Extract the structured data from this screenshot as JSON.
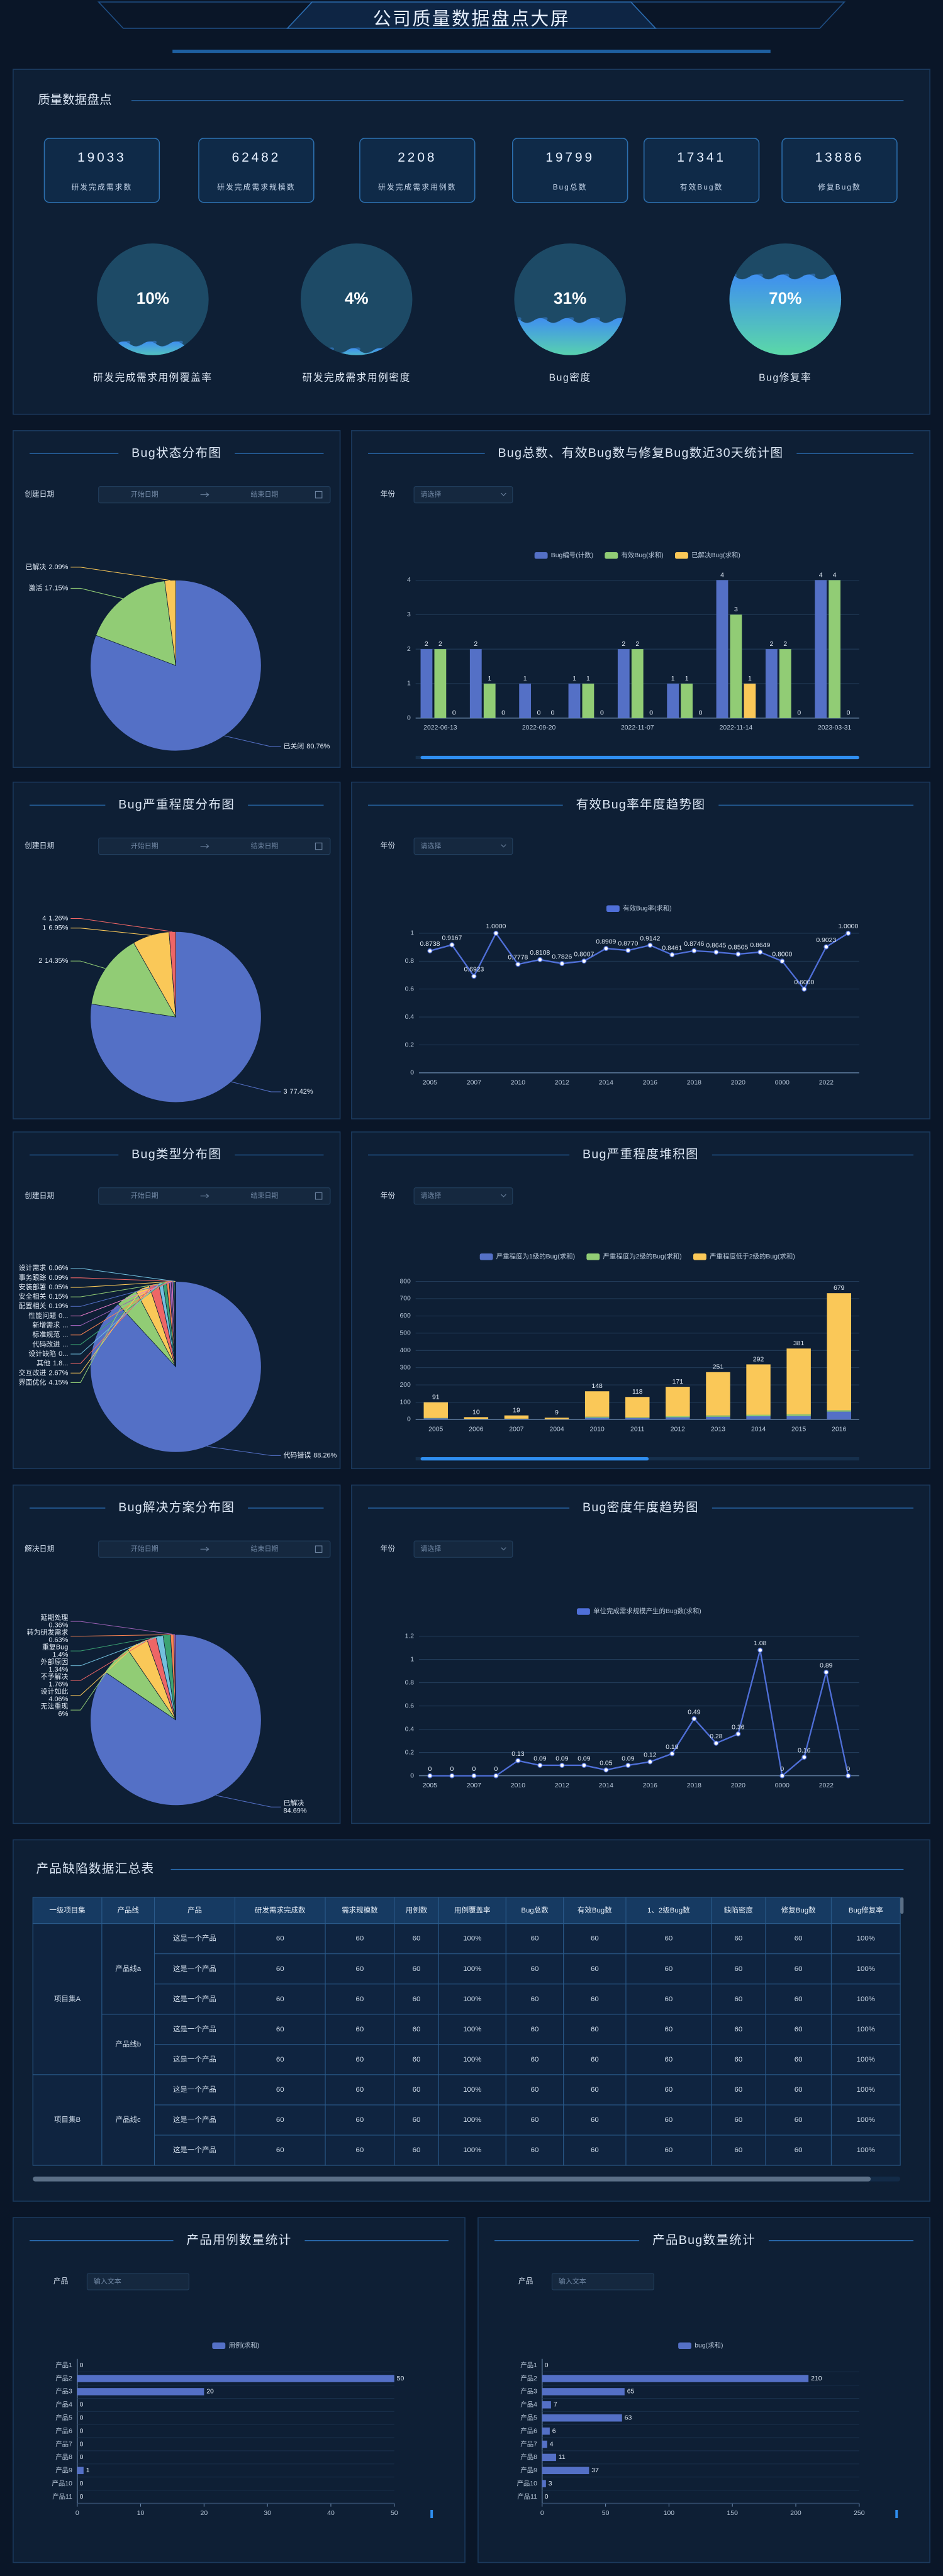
{
  "header": {
    "title": "公司质量数据盘点大屏"
  },
  "overview": {
    "title": "质量数据盘点",
    "kpis": [
      {
        "value": 19033,
        "label": "研发完成需求数"
      },
      {
        "value": 62482,
        "label": "研发完成需求规模数"
      },
      {
        "value": 2208,
        "label": "研发完成需求用例数"
      },
      {
        "value": 19799,
        "label": "Bug总数"
      },
      {
        "value": 17341,
        "label": "有效Bug数"
      },
      {
        "value": 13886,
        "label": "修复Bug数"
      }
    ],
    "gauges": [
      {
        "value": 10,
        "value_label": "10%",
        "label": "研发完成需求用例覆盖率"
      },
      {
        "value": 4,
        "value_label": "4%",
        "label": "研发完成需求用例密度"
      },
      {
        "value": 31,
        "value_label": "31%",
        "label": "Bug密度"
      },
      {
        "value": 70,
        "value_label": "70%",
        "label": "Bug修复率"
      }
    ]
  },
  "chart_data": [
    {
      "type": "pie",
      "title": "Bug状态分布图",
      "filter": {
        "label": "创建日期",
        "start": "开始日期",
        "end": "结束日期"
      },
      "categories": [
        "已关闭",
        "激活",
        "已解决"
      ],
      "values": [
        80.76,
        17.15,
        2.09
      ],
      "value_labels": [
        "80.76%",
        "17.15%",
        "2.09%"
      ],
      "colors": [
        "#5470c6",
        "#91cc75",
        "#fac858"
      ]
    },
    {
      "type": "bar",
      "title": "Bug总数、有效Bug数与修复Bug数近30天统计图",
      "filter": {
        "label": "年份",
        "placeholder": "请选择"
      },
      "categories": [
        "2022-06-13",
        null,
        "2022-09-20",
        null,
        "2022-11-07",
        null,
        "2022-11-14",
        null,
        "2023-03-31"
      ],
      "series": [
        {
          "name": "Bug编号(计数)",
          "color": "#5470c6",
          "values": [
            2,
            2,
            1,
            1,
            2,
            1,
            4,
            2,
            4
          ]
        },
        {
          "name": "有效Bug(求和)",
          "color": "#91cc75",
          "values": [
            2,
            1,
            0,
            1,
            2,
            1,
            3,
            2,
            4
          ]
        },
        {
          "name": "已解决Bug(求和)",
          "color": "#fac858",
          "values": [
            0,
            0,
            0,
            0,
            0,
            0,
            1,
            0,
            0
          ]
        }
      ],
      "ylim": [
        0,
        4
      ],
      "yticks": [
        0,
        1,
        2,
        3,
        4
      ],
      "grid": true
    },
    {
      "type": "pie",
      "title": "Bug严重程度分布图",
      "filter": {
        "label": "创建日期",
        "start": "开始日期",
        "end": "结束日期"
      },
      "categories": [
        "3",
        "2",
        "1",
        "4"
      ],
      "values": [
        77.42,
        14.35,
        6.95,
        1.26
      ],
      "value_labels": [
        "77.42%",
        "14.35%",
        "6.95%",
        "1.26%"
      ],
      "colors": [
        "#5470c6",
        "#91cc75",
        "#fac858",
        "#ee6666"
      ]
    },
    {
      "type": "line",
      "title": "有效Bug率年度趋势图",
      "filter": {
        "label": "年份",
        "placeholder": "请选择"
      },
      "categories": [
        "2005",
        null,
        "2007",
        null,
        "2010",
        null,
        "2012",
        null,
        "2014",
        null,
        "2016",
        null,
        "2018",
        null,
        "2020",
        null,
        "0000",
        null,
        "2022",
        null
      ],
      "series": [
        {
          "name": "有效Bug率(求和)",
          "color": "#4f6fd8",
          "values": [
            0.8738,
            0.9167,
            0.6923,
            1,
            0.7778,
            0.8108,
            0.7826,
            0.8007,
            0.8909,
            0.877,
            0.9142,
            0.8461,
            0.8746,
            0.8645,
            0.8505,
            0.8649,
            0.8,
            0.6,
            0.9023,
            1
          ],
          "value_labels": [
            "0.8738",
            "0.9167",
            "0.6923",
            "1.0000",
            "0.7778",
            "0.8108",
            "0.7826",
            "0.8007",
            "0.8909",
            "0.8770",
            "0.9142",
            "0.8461",
            "0.8746",
            "0.8645",
            "0.8505",
            "0.8649",
            "0.8000",
            "0.6000",
            "0.9023",
            "1.0000"
          ]
        }
      ],
      "ylim": [
        0,
        1
      ],
      "yticks": [
        0,
        0.2,
        0.4,
        0.6,
        0.8,
        1
      ],
      "grid": true
    },
    {
      "type": "pie",
      "title": "Bug类型分布图",
      "filter": {
        "label": "创建日期",
        "start": "开始日期",
        "end": "结束日期"
      },
      "categories": [
        "代码错误",
        "界面优化",
        "交互改进",
        "其他",
        "设计缺陷",
        "代码改进",
        "标准规范",
        "新增需求",
        "性能问题",
        "配置相关",
        "安全相关",
        "安装部署",
        "事务跟踪",
        "设计需求"
      ],
      "values": [
        88.26,
        4.15,
        2.67,
        1.8,
        0.8,
        0.7,
        0.5,
        0.4,
        0.3,
        0.19,
        0.15,
        0.05,
        0.09,
        0.06
      ],
      "value_labels": [
        "88.26%",
        "4.15%",
        "2.67%",
        "1.8...",
        "0...",
        "...",
        "...",
        "...",
        "0...",
        "0.19%",
        "0.15%",
        "0.05%",
        "0.09%",
        "0.06%"
      ],
      "colors": [
        "#5470c6",
        "#91cc75",
        "#fac858",
        "#ee6666",
        "#73c0de",
        "#3ba272",
        "#fc8452",
        "#9a60b4",
        "#ea7ccc",
        "#5470c6",
        "#91cc75",
        "#fac858",
        "#ee6666",
        "#73c0de"
      ]
    },
    {
      "type": "bar",
      "stacked": true,
      "title": "Bug严重程度堆积图",
      "filter": {
        "label": "年份",
        "placeholder": "请选择"
      },
      "categories": [
        "2005",
        "2006",
        "2007",
        "2004",
        "2010",
        "2011",
        "2012",
        "2013",
        "2014",
        "2015",
        "2016"
      ],
      "series": [
        {
          "name": "严重程度为1级的Bug(求和)",
          "color": "#5470c6",
          "values": [
            6,
            2,
            3,
            1,
            10,
            8,
            12,
            15,
            18,
            20,
            45
          ]
        },
        {
          "name": "严重程度为2级的Bug(求和)",
          "color": "#91cc75",
          "values": [
            2,
            1,
            1,
            0,
            5,
            4,
            6,
            8,
            9,
            10,
            8
          ]
        },
        {
          "name": "严重程度低于2级的Bug(求和)",
          "color": "#fac858",
          "values": [
            91,
            10,
            19,
            9,
            148,
            118,
            171,
            251,
            292,
            381,
            679
          ]
        }
      ],
      "ylim": [
        0,
        800
      ],
      "yticks": [
        0,
        100,
        200,
        300,
        400,
        500,
        600,
        700,
        800
      ],
      "grid": true
    },
    {
      "type": "pie",
      "label_break": true,
      "title": "Bug解决方案分布图",
      "filter": {
        "label": "解决日期",
        "start": "开始日期",
        "end": "结束日期"
      },
      "categories": [
        "已解决",
        "无法重现",
        "设计如此",
        "不予解决",
        "外部原因",
        "重复Bug",
        "转为研发需求",
        "延期处理"
      ],
      "values": [
        84.69,
        6,
        4.06,
        1.76,
        1.34,
        1.4,
        0.63,
        0.36
      ],
      "value_labels": [
        "84.69%",
        "6%",
        "4.06%",
        "1.76%",
        "1.34%",
        "1.4%",
        "0.63%",
        "0.36%"
      ],
      "colors": [
        "#5470c6",
        "#91cc75",
        "#fac858",
        "#ee6666",
        "#73c0de",
        "#3ba272",
        "#fc8452",
        "#9a60b4"
      ]
    },
    {
      "type": "line",
      "title": "Bug密度年度趋势图",
      "filter": {
        "label": "年份",
        "placeholder": "请选择"
      },
      "categories": [
        "2005",
        null,
        "2007",
        null,
        "2010",
        null,
        "2012",
        null,
        "2014",
        null,
        "2016",
        null,
        "2018",
        null,
        "2020",
        null,
        "0000",
        null,
        "2022",
        null
      ],
      "series": [
        {
          "name": "单位完成需求规模产生的Bug数(求和)",
          "color": "#4f6fd8",
          "values": [
            0,
            0,
            0,
            0,
            0.13,
            0.09,
            0.09,
            0.09,
            0.05,
            0.09,
            0.12,
            0.19,
            0.49,
            0.28,
            0.36,
            1.08,
            0,
            0.16,
            0.89,
            0
          ]
        }
      ],
      "ylim": [
        0,
        1.2
      ],
      "yticks": [
        0,
        0.2,
        0.4,
        0.6,
        0.8,
        1,
        1.2
      ],
      "grid": true
    },
    {
      "type": "bar",
      "horizontal": true,
      "title": "产品用例数量统计",
      "filter": {
        "label": "产品",
        "placeholder": "输入文本"
      },
      "categories": [
        "产品1",
        "产品2",
        "产品3",
        "产品4",
        "产品5",
        "产品6",
        "产品7",
        "产品8",
        "产品9",
        "产品10",
        "产品11"
      ],
      "series": [
        {
          "name": "用例(求和)",
          "color": "#5470c6",
          "values": [
            0,
            50,
            20,
            0,
            0,
            0,
            0,
            0,
            1,
            0,
            0
          ]
        }
      ],
      "xlim": [
        0,
        50
      ],
      "xticks": [
        0,
        10,
        20,
        30,
        40,
        50
      ]
    },
    {
      "type": "bar",
      "horizontal": true,
      "title": "产品Bug数量统计",
      "filter": {
        "label": "产品",
        "placeholder": "输入文本"
      },
      "categories": [
        "产品1",
        "产品2",
        "产品3",
        "产品4",
        "产品5",
        "产品6",
        "产品7",
        "产品8",
        "产品9",
        "产品10",
        "产品11"
      ],
      "series": [
        {
          "name": "bug(求和)",
          "color": "#5470c6",
          "values": [
            0,
            210,
            65,
            7,
            63,
            6,
            4,
            11,
            37,
            3,
            0
          ]
        }
      ],
      "xlim": [
        0,
        250
      ],
      "xticks": [
        0,
        50,
        100,
        150,
        200,
        250
      ]
    }
  ],
  "table": {
    "title": "产品缺陷数据汇总表",
    "columns": [
      "一级项目集",
      "产品线",
      "产品",
      "研发需求完成数",
      "需求规模数",
      "用例数",
      "用例覆盖率",
      "Bug总数",
      "有效Bug数",
      "1、2级Bug数",
      "缺陷密度",
      "修复Bug数",
      "Bug修复率"
    ],
    "groups": [
      {
        "name": "项目集A",
        "lines": [
          {
            "name": "产品线a",
            "rows": [
              [
                "这是一个产品",
                60,
                60,
                60,
                "100%",
                60,
                60,
                60,
                60,
                60,
                "100%"
              ],
              [
                "这是一个产品",
                60,
                60,
                60,
                "100%",
                60,
                60,
                60,
                60,
                60,
                "100%"
              ],
              [
                "这是一个产品",
                60,
                60,
                60,
                "100%",
                60,
                60,
                60,
                60,
                60,
                "100%"
              ]
            ]
          },
          {
            "name": "产品线b",
            "rows": [
              [
                "这是一个产品",
                60,
                60,
                60,
                "100%",
                60,
                60,
                60,
                60,
                60,
                "100%"
              ],
              [
                "这是一个产品",
                60,
                60,
                60,
                "100%",
                60,
                60,
                60,
                60,
                60,
                "100%"
              ]
            ]
          }
        ]
      },
      {
        "name": "项目集B",
        "lines": [
          {
            "name": "产品线c",
            "rows": [
              [
                "这是一个产品",
                60,
                60,
                60,
                "100%",
                60,
                60,
                60,
                60,
                60,
                "100%"
              ],
              [
                "这是一个产品",
                60,
                60,
                60,
                "100%",
                60,
                60,
                60,
                60,
                60,
                "100%"
              ],
              [
                "这是一个产品",
                60,
                60,
                60,
                "100%",
                60,
                60,
                60,
                60,
                60,
                "100%"
              ]
            ]
          }
        ]
      }
    ]
  }
}
